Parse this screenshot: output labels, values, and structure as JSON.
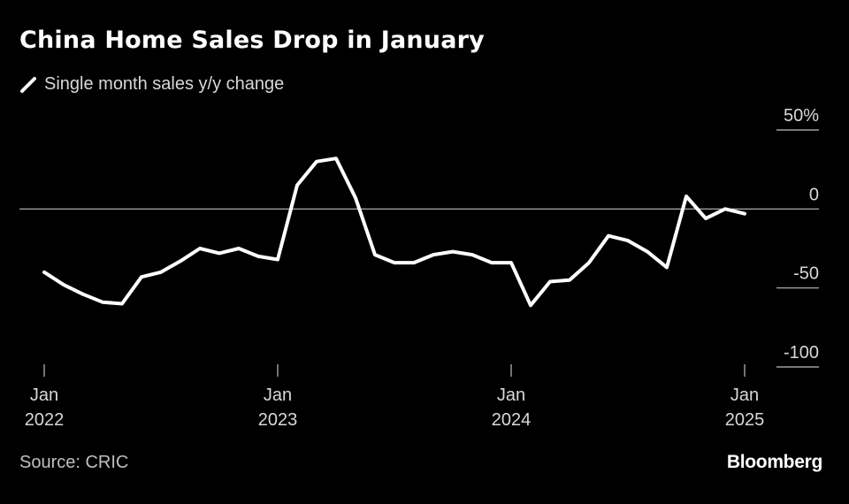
{
  "title": "China Home Sales Drop in January",
  "legend": {
    "label": "Single month sales y/y change",
    "swatch_color": "#ffffff"
  },
  "source": "Source: CRIC",
  "brand": "Bloomberg",
  "chart_data": {
    "type": "line",
    "title": "China Home Sales Drop in January",
    "xlabel": "",
    "ylabel": "",
    "ylim": [
      -100,
      50
    ],
    "yticks": [
      {
        "value": 50,
        "label": "50%"
      },
      {
        "value": 0,
        "label": "0"
      },
      {
        "value": -50,
        "label": "-50"
      },
      {
        "value": -100,
        "label": "-100"
      }
    ],
    "xticks": [
      {
        "index": 0,
        "month": "Jan",
        "year": "2022"
      },
      {
        "index": 12,
        "month": "Jan",
        "year": "2023"
      },
      {
        "index": 24,
        "month": "Jan",
        "year": "2024"
      },
      {
        "index": 36,
        "month": "Jan",
        "year": "2025"
      }
    ],
    "series": [
      {
        "name": "Single month sales y/y change",
        "color": "#ffffff",
        "x": [
          "2022-01",
          "2022-02",
          "2022-03",
          "2022-04",
          "2022-05",
          "2022-06",
          "2022-07",
          "2022-08",
          "2022-09",
          "2022-10",
          "2022-11",
          "2022-12",
          "2023-01",
          "2023-02",
          "2023-03",
          "2023-04",
          "2023-05",
          "2023-06",
          "2023-07",
          "2023-08",
          "2023-09",
          "2023-10",
          "2023-11",
          "2023-12",
          "2024-01",
          "2024-02",
          "2024-03",
          "2024-04",
          "2024-05",
          "2024-06",
          "2024-07",
          "2024-08",
          "2024-09",
          "2024-10",
          "2024-11",
          "2024-12",
          "2025-01"
        ],
        "values": [
          -40,
          -48,
          -54,
          -59,
          -60,
          -43,
          -40,
          -33,
          -25,
          -28,
          -25,
          -30,
          -32,
          15,
          30,
          32,
          7,
          -29,
          -34,
          -34,
          -29,
          -27,
          -29,
          -34,
          -34,
          -61,
          -46,
          -45,
          -34,
          -17,
          -20,
          -27,
          -37,
          8,
          -6,
          0,
          -3
        ]
      }
    ]
  }
}
